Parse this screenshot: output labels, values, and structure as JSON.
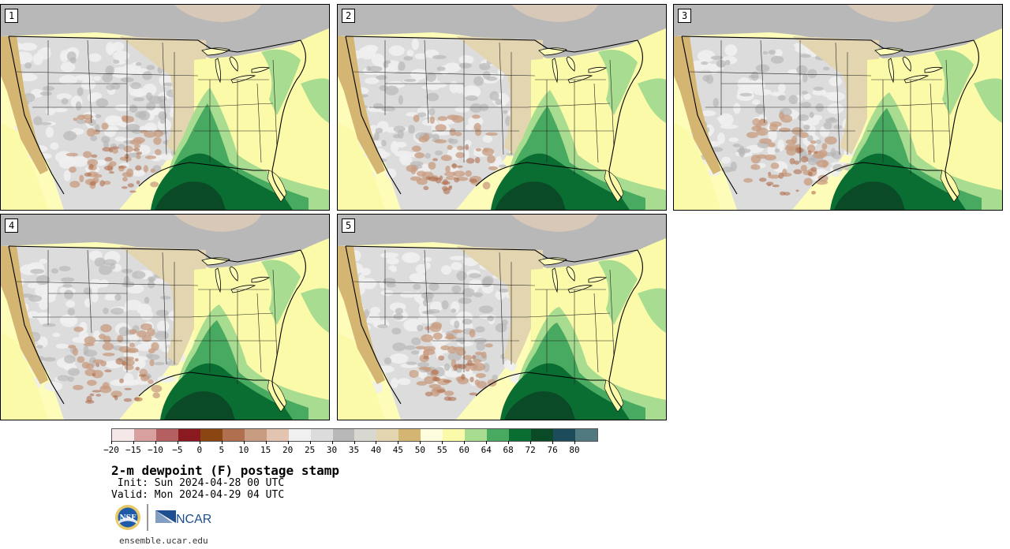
{
  "panels": [
    {
      "label": "1"
    },
    {
      "label": "2"
    },
    {
      "label": "3"
    },
    {
      "label": "4"
    },
    {
      "label": "5"
    }
  ],
  "colorbar": {
    "colors": [
      "#f5e8e8",
      "#d9a0a0",
      "#b46060",
      "#8a1a20",
      "#8b4513",
      "#b07050",
      "#c89c80",
      "#e2c4b0",
      "#f0f0f0",
      "#dcdcdc",
      "#b8b8b8",
      "#d8d8d0",
      "#e2d5b0",
      "#d4b572",
      "#fdfcdc",
      "#fafaa8",
      "#a8dc90",
      "#48aa60",
      "#0a6e32",
      "#0a4a26",
      "#1c4c5c",
      "#507a80"
    ],
    "tick_labels": [
      "−20",
      "−15",
      "−10",
      "−5",
      "0",
      "5",
      "10",
      "15",
      "20",
      "25",
      "30",
      "35",
      "40",
      "45",
      "50",
      "55",
      "60",
      "64",
      "68",
      "72",
      "76",
      "80"
    ]
  },
  "title": "2-m dewpoint (F) postage stamp",
  "init": " Init: Sun 2024-04-28 00 UTC",
  "valid": "Valid: Mon 2024-04-29 04 UTC",
  "logos": {
    "nsf": "NSF",
    "ncar": "NCAR"
  },
  "url": "ensemble.ucar.edu"
}
